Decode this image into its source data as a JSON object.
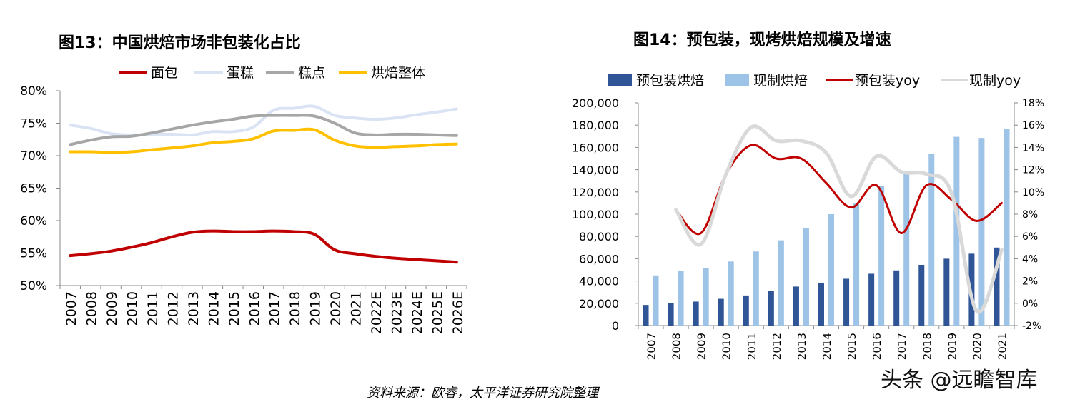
{
  "source_note": "资料来源：欧睿，太平洋证券研究院整理",
  "watermark": "头条 @远瞻智库",
  "chart_data": [
    {
      "type": "line",
      "title": "图13：中国烘焙市场非包装化占比",
      "categories": [
        "2007",
        "2008",
        "2009",
        "2010",
        "2011",
        "2012",
        "2013",
        "2014",
        "2015",
        "2016",
        "2017",
        "2018",
        "2019",
        "2020",
        "2021",
        "2022E",
        "2023E",
        "2024E",
        "2025E",
        "2026E"
      ],
      "y_ticks": [
        "50%",
        "55%",
        "60%",
        "65%",
        "70%",
        "75%",
        "80%"
      ],
      "ylim": [
        50,
        80
      ],
      "legend_position": "top",
      "series": [
        {
          "name": "面包",
          "color": "#C00000",
          "values": [
            54.6,
            54.9,
            55.3,
            55.9,
            56.6,
            57.5,
            58.2,
            58.4,
            58.3,
            58.3,
            58.4,
            58.3,
            57.9,
            55.5,
            54.9,
            54.5,
            54.2,
            54.0,
            53.8,
            53.6
          ]
        },
        {
          "name": "蛋糕",
          "color": "#DAE3F3",
          "values": [
            74.7,
            74.2,
            73.4,
            73.2,
            73.3,
            73.3,
            73.2,
            73.7,
            73.7,
            74.4,
            77.0,
            77.3,
            77.6,
            76.2,
            75.8,
            75.6,
            75.8,
            76.3,
            76.7,
            77.2
          ]
        },
        {
          "name": "糕点",
          "color": "#A6A6A6",
          "values": [
            71.7,
            72.4,
            72.9,
            73.0,
            73.5,
            74.1,
            74.7,
            75.2,
            75.6,
            76.1,
            76.2,
            76.2,
            76.1,
            75.0,
            73.5,
            73.2,
            73.3,
            73.3,
            73.2,
            73.1
          ]
        },
        {
          "name": "烘焙整体",
          "color": "#FFC000",
          "values": [
            70.6,
            70.6,
            70.5,
            70.6,
            70.9,
            71.2,
            71.5,
            72.0,
            72.2,
            72.6,
            73.8,
            73.9,
            74.0,
            72.4,
            71.5,
            71.3,
            71.4,
            71.5,
            71.7,
            71.8
          ]
        }
      ]
    },
    {
      "type": "bar",
      "title": "图14：预包装，现烤烘焙规模及增速",
      "categories": [
        "2007",
        "2008",
        "2009",
        "2010",
        "2011",
        "2012",
        "2013",
        "2014",
        "2015",
        "2016",
        "2017",
        "2018",
        "2019",
        "2020",
        "2021"
      ],
      "y_left_ticks": [
        "0",
        "20,000",
        "40,000",
        "60,000",
        "80,000",
        "100,000",
        "120,000",
        "140,000",
        "160,000",
        "180,000",
        "200,000"
      ],
      "y_right_ticks": [
        "-2%",
        "0%",
        "2%",
        "4%",
        "6%",
        "8%",
        "10%",
        "12%",
        "14%",
        "16%",
        "18%"
      ],
      "ylim_left": [
        0,
        200000
      ],
      "ylim_right": [
        -2,
        18
      ],
      "legend_position": "top",
      "series": [
        {
          "name": "预包装烘焙",
          "kind": "bar",
          "color": "#2F5597",
          "values": [
            18500,
            20000,
            21500,
            24000,
            27000,
            31000,
            35000,
            38500,
            42000,
            46500,
            49500,
            54500,
            60000,
            64500,
            70000
          ]
        },
        {
          "name": "现制烘焙",
          "kind": "bar",
          "color": "#9DC3E6",
          "values": [
            45000,
            49000,
            51500,
            57500,
            66500,
            76500,
            87500,
            100000,
            109500,
            125000,
            137500,
            154500,
            169500,
            168500,
            176500
          ]
        },
        {
          "name": "预包装yoy",
          "kind": "line",
          "axis": "right",
          "color": "#C00000",
          "values": [
            null,
            8.4,
            6.3,
            11.6,
            14.2,
            13.0,
            13.0,
            10.8,
            8.6,
            10.6,
            6.3,
            10.6,
            9.3,
            7.4,
            9.0
          ]
        },
        {
          "name": "现制yoy",
          "kind": "line",
          "axis": "right",
          "color": "#D9D9D9",
          "values": [
            null,
            8.4,
            5.3,
            11.6,
            15.8,
            14.6,
            14.6,
            13.5,
            9.6,
            13.2,
            11.8,
            11.6,
            9.9,
            -0.7,
            4.8
          ]
        }
      ]
    }
  ]
}
